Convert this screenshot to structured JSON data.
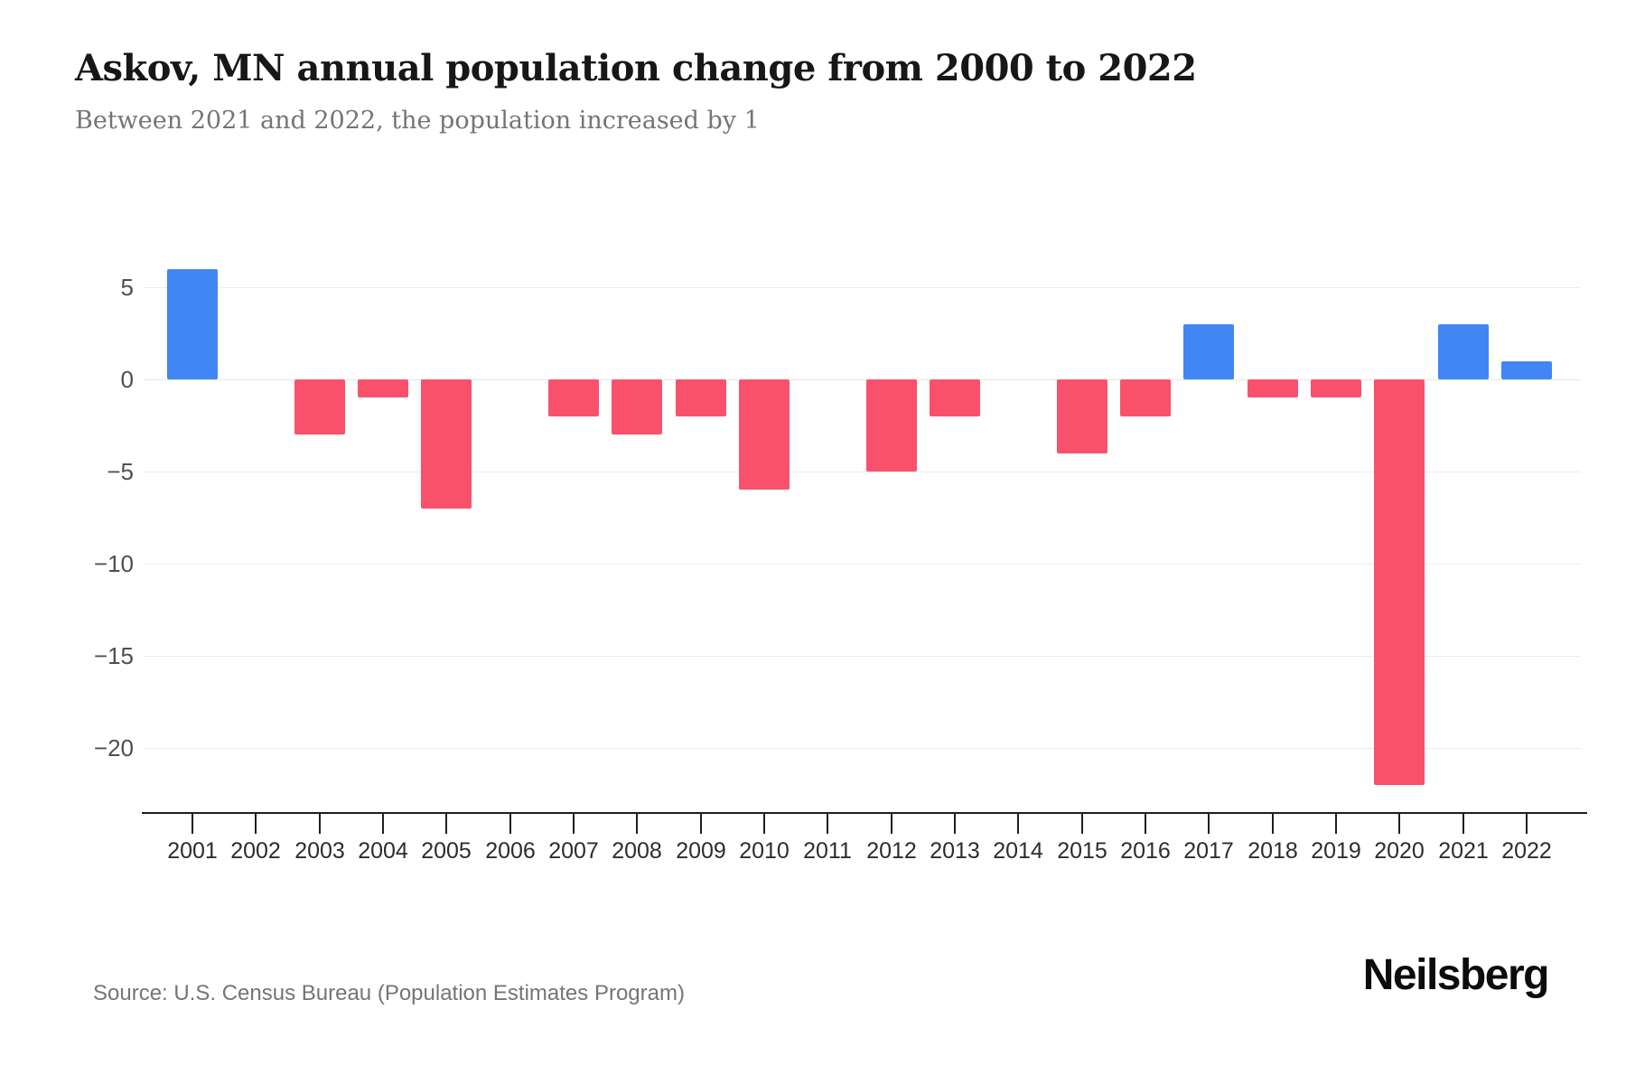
{
  "header": {
    "title": "Askov, MN annual population change from 2000 to 2022",
    "subtitle": "Between 2021 and 2022, the population increased by 1"
  },
  "footer": {
    "source": "Source: U.S. Census Bureau (Population Estimates Program)",
    "brand": "Neilsberg"
  },
  "chart_data": {
    "type": "bar",
    "title": "Askov, MN annual population change from 2000 to 2022",
    "subtitle": "Between 2021 and 2022, the population increased by 1",
    "categories": [
      "2001",
      "2002",
      "2003",
      "2004",
      "2005",
      "2006",
      "2007",
      "2008",
      "2009",
      "2010",
      "2011",
      "2012",
      "2013",
      "2014",
      "2015",
      "2016",
      "2017",
      "2018",
      "2019",
      "2020",
      "2021",
      "2022"
    ],
    "values": [
      6,
      0,
      -3,
      -1,
      -7,
      0,
      -2,
      -3,
      -2,
      -6,
      0,
      -5,
      -2,
      0,
      -4,
      -2,
      3,
      -1,
      -1,
      -22,
      3,
      1
    ],
    "xlabel": "",
    "ylabel": "",
    "yticks": [
      5,
      0,
      -5,
      -10,
      -15,
      -20
    ],
    "ylim": [
      -23.5,
      8
    ],
    "grid": "horizontal",
    "legend": "none",
    "colors": {
      "positive": "#4285f4",
      "negative": "#f9516c"
    }
  }
}
